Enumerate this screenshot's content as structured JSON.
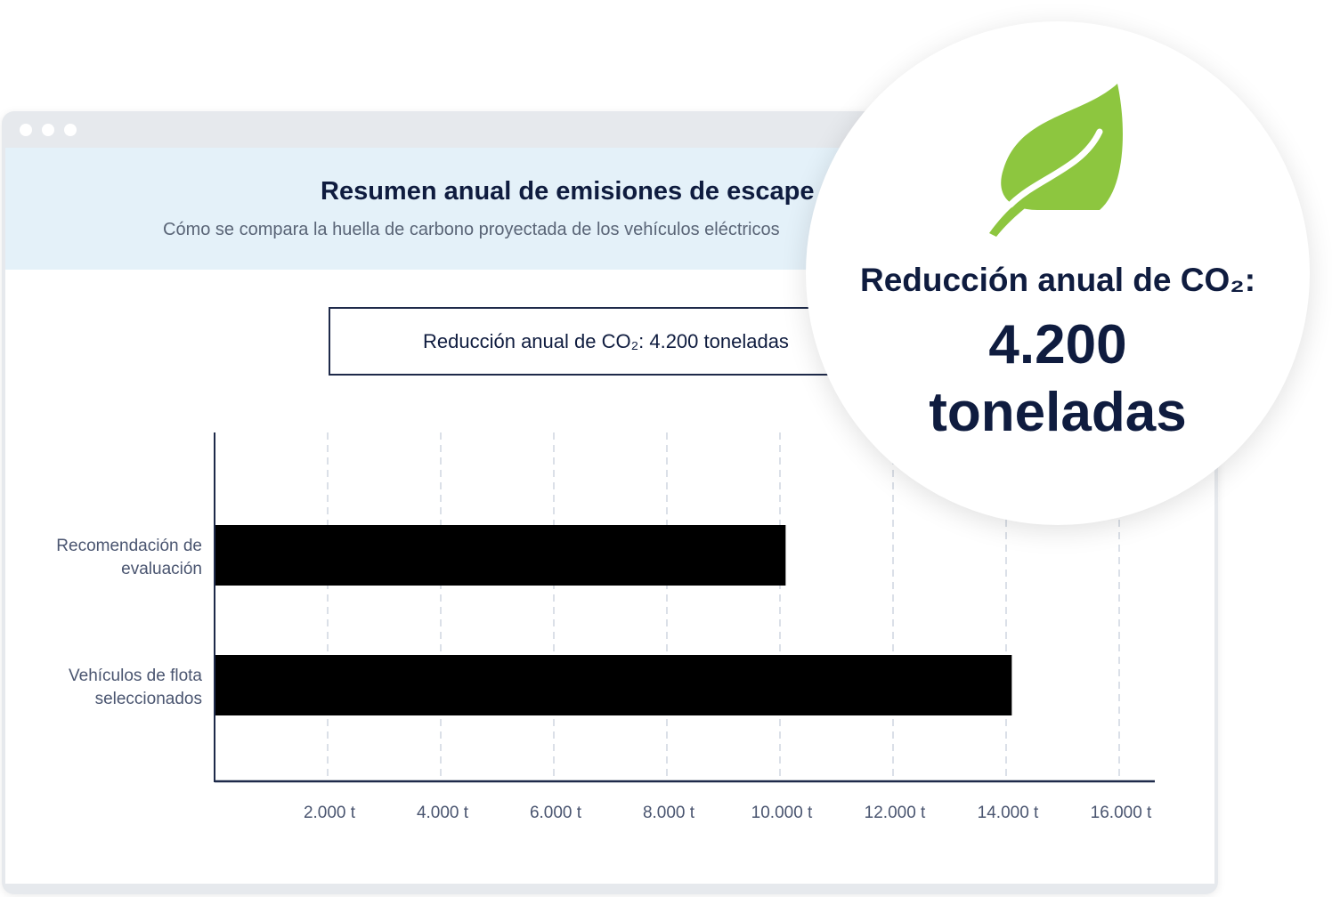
{
  "window": {
    "title": "Resumen anual de emisiones de escape",
    "subtitle": "Cómo se compara la huella de carbono proyectada de los vehículos eléctricos"
  },
  "summary_box": {
    "text": "Reducción anual de CO₂: 4.200 toneladas"
  },
  "callout": {
    "icon": "leaf-icon",
    "label": "Reducción anual de CO₂:",
    "value": "4.200",
    "unit": "toneladas",
    "icon_color": "#8dc63f"
  },
  "chart_data": {
    "type": "bar",
    "orientation": "horizontal",
    "categories": [
      "Recomendación de evaluación",
      "Vehículos de flota seleccionados"
    ],
    "category_lines": [
      [
        "Recomendación de",
        "evaluación"
      ],
      [
        "Vehículos de flota",
        "seleccionados"
      ]
    ],
    "values": [
      10100,
      14100
    ],
    "unit": "t",
    "xlim": [
      0,
      16700
    ],
    "xticks": [
      2000,
      4000,
      6000,
      8000,
      10000,
      12000,
      14000,
      16000
    ],
    "xtick_labels": [
      "2.000 t",
      "4.000 t",
      "6.000 t",
      "8.000 t",
      "10.000 t",
      "12.000 t",
      "14.000 t",
      "16.000 t"
    ],
    "grid": true,
    "bar_color": "#000000"
  }
}
